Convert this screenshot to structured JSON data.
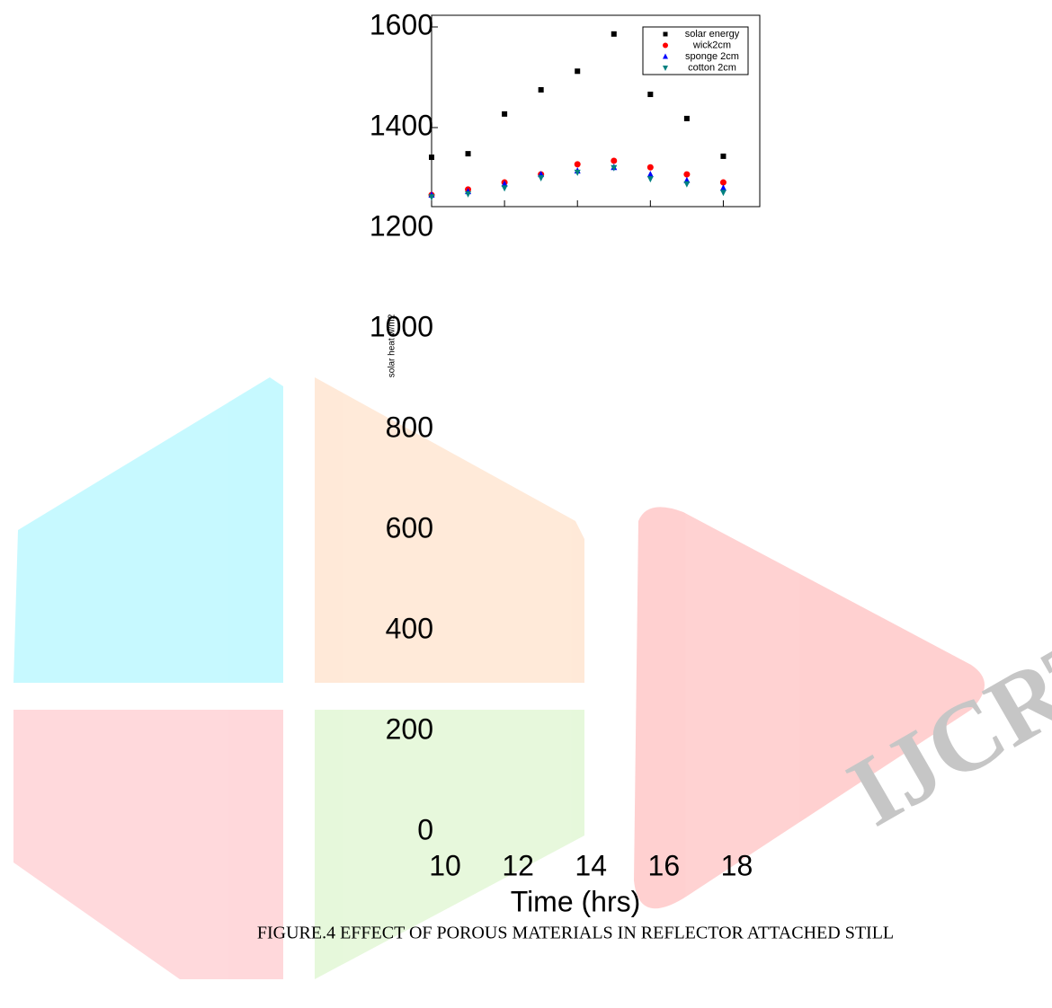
{
  "chart_data": {
    "type": "scatter",
    "x_label": "Time (hrs)",
    "y_label": "solar heat w/m2",
    "caption": "FIGURE.4 EFFECT OF POROUS MATERIALS IN REFLECTOR ATTACHED STILL",
    "x": [
      10,
      11,
      12,
      13,
      14,
      15,
      16,
      17,
      18
    ],
    "xlim": [
      10,
      19
    ],
    "xticks": [
      10,
      12,
      14,
      16,
      18
    ],
    "ylim": [
      0,
      1600
    ],
    "yticks": [
      0,
      200,
      400,
      600,
      800,
      1000,
      1200,
      1400,
      1600
    ],
    "legend": "upper right",
    "series": [
      {
        "name": "solar energy",
        "color": "#000000",
        "marker": "square",
        "values": [
          1341,
          1348,
          1427,
          1475,
          1512,
          1586,
          1466,
          1418,
          1343
        ]
      },
      {
        "name": "wick2cm",
        "color": "#ff0000",
        "marker": "circle",
        "values": [
          1266,
          1277,
          1291,
          1307,
          1327,
          1334,
          1321,
          1307,
          1291
        ]
      },
      {
        "name": "sponge 2cm",
        "color": "#0000ff",
        "marker": "triangle-up",
        "values": [
          1266,
          1273,
          1288,
          1307,
          1314,
          1321,
          1307,
          1295,
          1280
        ]
      },
      {
        "name": "cotton 2cm",
        "color": "#008080",
        "marker": "triangle-down",
        "values": [
          1262,
          1268,
          1280,
          1300,
          1311,
          1320,
          1298,
          1288,
          1271
        ]
      }
    ]
  }
}
